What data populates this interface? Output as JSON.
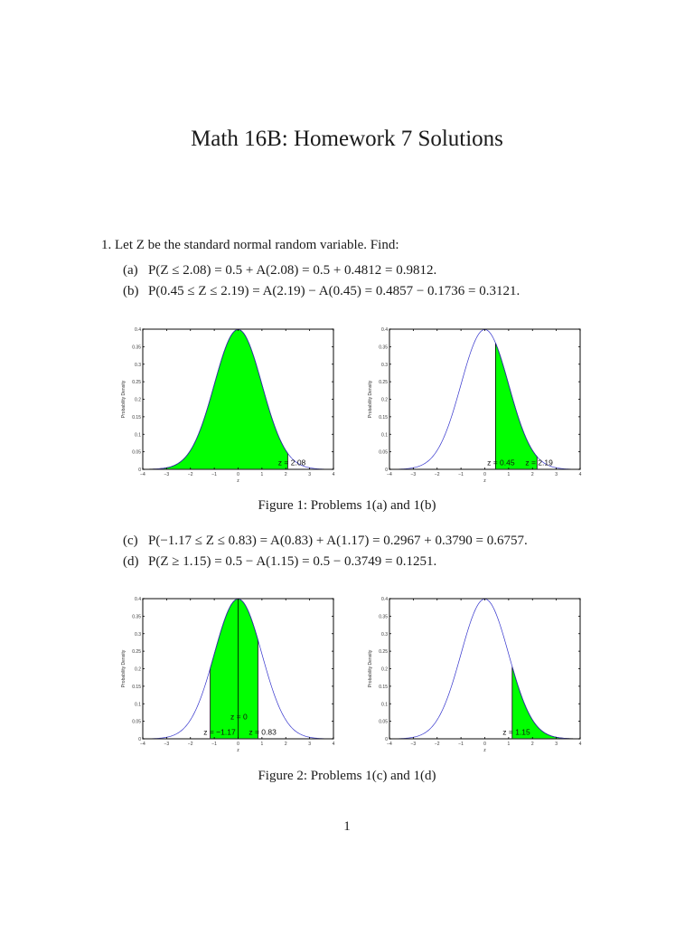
{
  "document": {
    "title": "Math 16B: Homework 7 Solutions",
    "page_number": "1"
  },
  "problem1": {
    "intro": "1. Let Z be the standard normal random variable. Find:",
    "parts": [
      {
        "label": "(a)",
        "text": "P(Z ≤ 2.08) = 0.5 + A(2.08) = 0.5 + 0.4812 = 0.9812."
      },
      {
        "label": "(b)",
        "text": "P(0.45 ≤ Z ≤ 2.19) = A(2.19) − A(0.45) = 0.4857 − 0.1736 = 0.3121."
      },
      {
        "label": "(c)",
        "text": "P(−1.17 ≤ Z ≤ 0.83) = A(0.83) + A(1.17) = 0.2967 + 0.3790 = 0.6757."
      },
      {
        "label": "(d)",
        "text": "P(Z ≥ 1.15) = 0.5 − A(1.15) = 0.5 − 0.3749 = 0.1251."
      }
    ]
  },
  "figures": [
    {
      "caption": "Figure 1: Problems 1(a) and 1(b)"
    },
    {
      "caption": "Figure 2: Problems 1(c) and 1(d)"
    }
  ],
  "colors": {
    "fill": "#00ff00",
    "curve": "#3333cc",
    "axis": "#000000"
  },
  "chart_data": [
    {
      "type": "area",
      "title": "",
      "xlabel": "z",
      "ylabel": "Probability Density",
      "xlim": [
        -4,
        4
      ],
      "ylim": [
        0,
        0.4
      ],
      "xticks": [
        "−4",
        "−3",
        "−2",
        "−1",
        "0",
        "1",
        "2",
        "3",
        "4"
      ],
      "yticks": [
        "0",
        "0.05",
        "0.1",
        "0.15",
        "0.2",
        "0.25",
        "0.3",
        "0.35",
        "0.4"
      ],
      "curve": "standard normal pdf",
      "shaded_from": -4,
      "shaded_to": 2.08,
      "annotations": [
        "z = 2.08"
      ]
    },
    {
      "type": "area",
      "title": "",
      "xlabel": "z",
      "ylabel": "Probability Density",
      "xlim": [
        -4,
        4
      ],
      "ylim": [
        0,
        0.4
      ],
      "xticks": [
        "−4",
        "−3",
        "−2",
        "−1",
        "0",
        "1",
        "2",
        "3",
        "4"
      ],
      "yticks": [
        "0",
        "0.05",
        "0.1",
        "0.15",
        "0.2",
        "0.25",
        "0.3",
        "0.35",
        "0.4"
      ],
      "curve": "standard normal pdf",
      "shaded_from": 0.45,
      "shaded_to": 2.19,
      "annotations": [
        "z = 0.45",
        "z = 2.19"
      ]
    },
    {
      "type": "area",
      "title": "",
      "xlabel": "z",
      "ylabel": "Probability Density",
      "xlim": [
        -4,
        4
      ],
      "ylim": [
        0,
        0.4
      ],
      "xticks": [
        "−4",
        "−3",
        "−2",
        "−1",
        "0",
        "1",
        "2",
        "3",
        "4"
      ],
      "yticks": [
        "0",
        "0.05",
        "0.1",
        "0.15",
        "0.2",
        "0.25",
        "0.3",
        "0.35",
        "0.4"
      ],
      "curve": "standard normal pdf",
      "shaded_from": -1.17,
      "shaded_to": 0.83,
      "annotations": [
        "z = 0",
        "z = −1.17",
        "z = 0.83"
      ]
    },
    {
      "type": "area",
      "title": "",
      "xlabel": "z",
      "ylabel": "Probability Density",
      "xlim": [
        -4,
        4
      ],
      "ylim": [
        0,
        0.4
      ],
      "xticks": [
        "−4",
        "−3",
        "−2",
        "−1",
        "0",
        "1",
        "2",
        "3",
        "4"
      ],
      "yticks": [
        "0",
        "0.05",
        "0.1",
        "0.15",
        "0.2",
        "0.25",
        "0.3",
        "0.35",
        "0.4"
      ],
      "curve": "standard normal pdf",
      "shaded_from": 1.15,
      "shaded_to": 4,
      "annotations": [
        "z = 1.15"
      ]
    }
  ]
}
